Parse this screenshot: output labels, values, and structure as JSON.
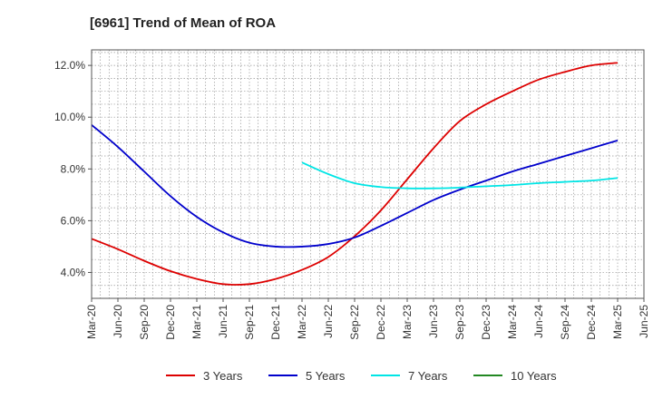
{
  "chart_data": {
    "type": "line",
    "title": "[6961]  Trend of Mean of ROA",
    "xlabel": "",
    "ylabel": "",
    "x": [
      "Mar-20",
      "Jun-20",
      "Sep-20",
      "Dec-20",
      "Mar-21",
      "Jun-21",
      "Sep-21",
      "Dec-21",
      "Mar-22",
      "Jun-22",
      "Sep-22",
      "Dec-22",
      "Mar-23",
      "Jun-23",
      "Sep-23",
      "Dec-23",
      "Mar-24",
      "Jun-24",
      "Sep-24",
      "Dec-24",
      "Mar-25",
      "Jun-25"
    ],
    "ylim": [
      3.0,
      12.6
    ],
    "yticks": [
      4.0,
      6.0,
      8.0,
      10.0,
      12.0
    ],
    "ytick_labels": [
      "4.0%",
      "6.0%",
      "8.0%",
      "10.0%",
      "12.0%"
    ],
    "grid": true,
    "legend_position": "bottom",
    "series": [
      {
        "name": "3 Years",
        "color": "#dd0000",
        "values": [
          5.3,
          4.9,
          4.45,
          4.05,
          3.75,
          3.55,
          3.55,
          3.75,
          4.1,
          4.6,
          5.4,
          6.4,
          7.6,
          8.8,
          9.85,
          10.5,
          11.0,
          11.45,
          11.75,
          12.0,
          12.1,
          null
        ]
      },
      {
        "name": "5 Years",
        "color": "#0000cc",
        "values": [
          9.7,
          8.85,
          7.9,
          6.95,
          6.15,
          5.55,
          5.15,
          5.0,
          5.0,
          5.1,
          5.35,
          5.8,
          6.3,
          6.8,
          7.2,
          7.55,
          7.9,
          8.2,
          8.5,
          8.8,
          9.1,
          null
        ]
      },
      {
        "name": "7 Years",
        "color": "#00e5e5",
        "values": [
          null,
          null,
          null,
          null,
          null,
          null,
          null,
          null,
          8.25,
          7.8,
          7.45,
          7.3,
          7.25,
          7.25,
          7.28,
          7.33,
          7.38,
          7.45,
          7.5,
          7.55,
          7.65,
          null
        ]
      },
      {
        "name": "10 Years",
        "color": "#228822",
        "values": [
          null,
          null,
          null,
          null,
          null,
          null,
          null,
          null,
          null,
          null,
          null,
          null,
          null,
          null,
          null,
          null,
          null,
          null,
          null,
          null,
          null,
          null
        ]
      }
    ]
  }
}
